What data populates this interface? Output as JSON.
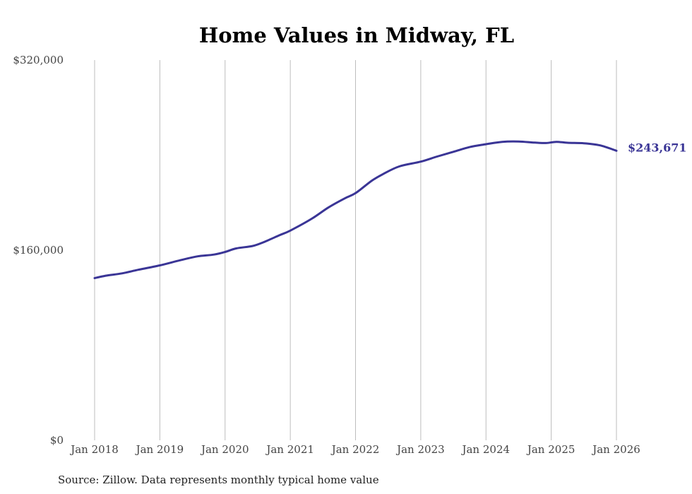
{
  "chart_data": {
    "type": "line",
    "title": "Home Values in Midway, FL",
    "xlabel": "",
    "ylabel": "",
    "ylim": [
      0,
      320000
    ],
    "y_ticks": [
      {
        "value": 0,
        "label": "$0"
      },
      {
        "value": 160000,
        "label": "$160,000"
      },
      {
        "value": 320000,
        "label": "$320,000"
      }
    ],
    "x_ticks": [
      {
        "value": 2018,
        "label": "Jan 2018"
      },
      {
        "value": 2019,
        "label": "Jan 2019"
      },
      {
        "value": 2020,
        "label": "Jan 2020"
      },
      {
        "value": 2021,
        "label": "Jan 2021"
      },
      {
        "value": 2022,
        "label": "Jan 2022"
      },
      {
        "value": 2023,
        "label": "Jan 2023"
      },
      {
        "value": 2024,
        "label": "Jan 2024"
      },
      {
        "value": 2025,
        "label": "Jan 2025"
      },
      {
        "value": 2026,
        "label": "Jan 2026"
      }
    ],
    "xlim": [
      2018,
      2026
    ],
    "grid": {
      "vertical": true,
      "horizontal": false
    },
    "series": [
      {
        "name": "Typical home value",
        "color": "#3a3596",
        "x": [
          2018.0,
          2018.17,
          2018.42,
          2018.67,
          2019.0,
          2019.33,
          2019.58,
          2019.83,
          2020.0,
          2020.17,
          2020.42,
          2020.58,
          2020.83,
          2021.0,
          2021.33,
          2021.58,
          2021.83,
          2022.0,
          2022.25,
          2022.42,
          2022.67,
          2023.0,
          2023.25,
          2023.5,
          2023.75,
          2024.0,
          2024.25,
          2024.5,
          2024.75,
          2024.92,
          2025.08,
          2025.25,
          2025.5,
          2025.75,
          2026.0
        ],
        "values": [
          136500,
          138500,
          140500,
          143500,
          147200,
          151800,
          154800,
          156300,
          158500,
          161500,
          163500,
          166500,
          172500,
          176500,
          186500,
          195800,
          203500,
          208000,
          218500,
          224000,
          230500,
          234500,
          238800,
          242800,
          246800,
          249200,
          251200,
          251500,
          250500,
          250200,
          251200,
          250400,
          250000,
          248200,
          243671
        ]
      }
    ],
    "end_label": "$243,671",
    "source_note": "Source: Zillow. Data represents monthly typical home value"
  }
}
